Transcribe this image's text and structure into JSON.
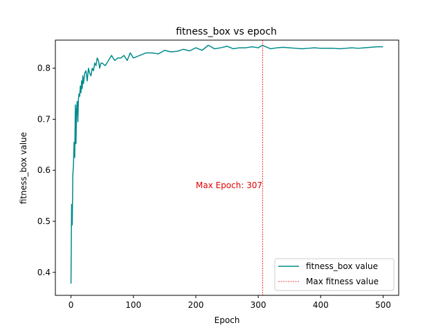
{
  "chart_data": {
    "type": "line",
    "title": "fitness_box vs epoch",
    "xlabel": "Epoch",
    "ylabel": "fitness_box value",
    "xlim": [
      -25,
      525
    ],
    "ylim": [
      0.355,
      0.855
    ],
    "xticks": [
      0,
      100,
      200,
      300,
      400,
      500
    ],
    "yticks": [
      0.4,
      0.5,
      0.6,
      0.7,
      0.8
    ],
    "ytick_labels": [
      "0.4",
      "0.5",
      "0.6",
      "0.7",
      "0.8"
    ],
    "legend_position": "lower-right",
    "grid": false,
    "series": [
      {
        "name": "fitness_box value",
        "color": "#008b8b",
        "x": [
          0,
          1,
          2,
          3,
          4,
          5,
          6,
          7,
          8,
          9,
          10,
          11,
          12,
          13,
          14,
          15,
          16,
          17,
          18,
          19,
          20,
          22,
          24,
          26,
          28,
          30,
          32,
          34,
          36,
          38,
          40,
          42,
          44,
          46,
          48,
          50,
          55,
          60,
          65,
          70,
          75,
          80,
          85,
          90,
          95,
          100,
          110,
          120,
          130,
          140,
          150,
          160,
          170,
          180,
          190,
          200,
          210,
          220,
          230,
          240,
          250,
          260,
          270,
          280,
          290,
          300,
          307,
          310,
          320,
          330,
          340,
          350,
          360,
          370,
          380,
          390,
          400,
          410,
          420,
          430,
          440,
          450,
          460,
          470,
          480,
          490,
          500
        ],
        "values": [
          0.378,
          0.533,
          0.493,
          0.592,
          0.61,
          0.655,
          0.625,
          0.728,
          0.652,
          0.72,
          0.735,
          0.695,
          0.74,
          0.75,
          0.745,
          0.765,
          0.752,
          0.775,
          0.76,
          0.785,
          0.77,
          0.79,
          0.795,
          0.775,
          0.8,
          0.79,
          0.785,
          0.8,
          0.795,
          0.81,
          0.805,
          0.82,
          0.815,
          0.8,
          0.81,
          0.81,
          0.805,
          0.815,
          0.825,
          0.815,
          0.82,
          0.82,
          0.825,
          0.815,
          0.83,
          0.82,
          0.825,
          0.83,
          0.83,
          0.828,
          0.835,
          0.832,
          0.833,
          0.837,
          0.834,
          0.84,
          0.835,
          0.845,
          0.838,
          0.84,
          0.843,
          0.838,
          0.84,
          0.84,
          0.842,
          0.84,
          0.845,
          0.843,
          0.838,
          0.84,
          0.841,
          0.84,
          0.839,
          0.838,
          0.839,
          0.84,
          0.839,
          0.839,
          0.839,
          0.838,
          0.839,
          0.84,
          0.839,
          0.84,
          0.841,
          0.842,
          0.842
        ]
      },
      {
        "name": "Max fitness value",
        "color": "#e00000",
        "vline_x": 307
      }
    ],
    "annotations": [
      {
        "text": "Max Epoch: 307",
        "x": 307,
        "y": 0.57
      }
    ]
  }
}
